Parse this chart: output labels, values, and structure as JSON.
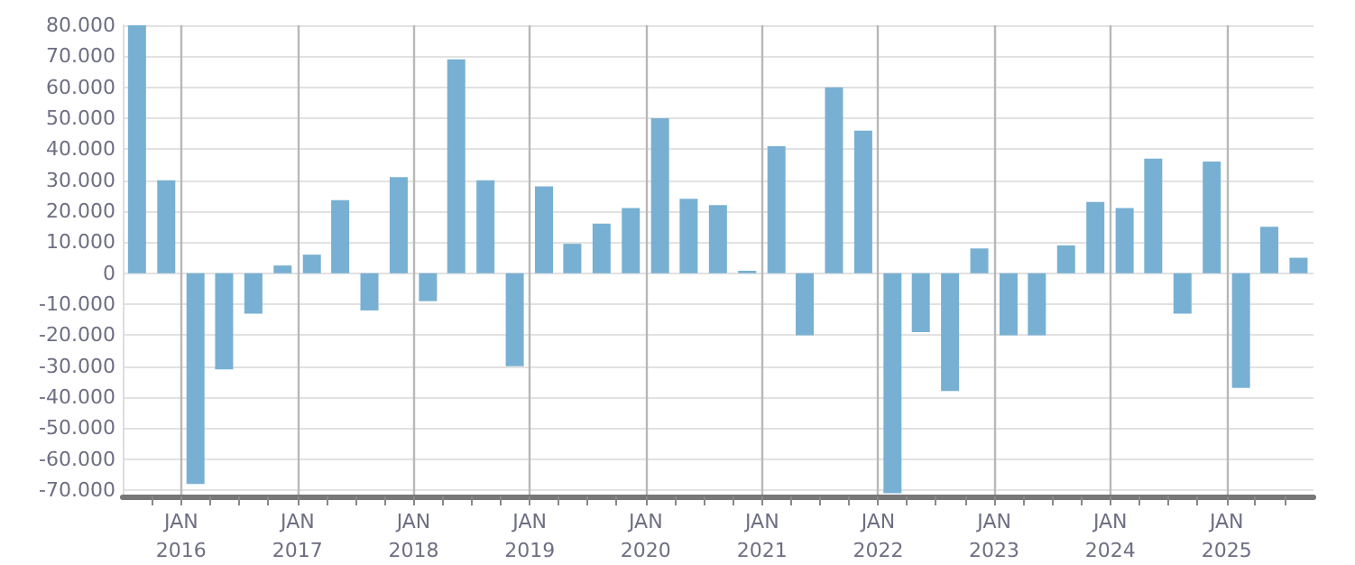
{
  "chart_data": {
    "type": "bar",
    "color": "#78b0d3",
    "x": [
      "2015-08-15",
      "2015-11-15",
      "2016-02-15",
      "2016-05-15",
      "2016-08-15",
      "2016-11-15",
      "2017-02-15",
      "2017-05-15",
      "2017-08-15",
      "2017-11-15",
      "2018-02-15",
      "2018-05-15",
      "2018-08-15",
      "2018-11-15",
      "2019-02-15",
      "2019-05-15",
      "2019-08-15",
      "2019-11-15",
      "2020-02-15",
      "2020-05-15",
      "2020-08-15",
      "2020-11-15",
      "2021-02-15",
      "2021-05-15",
      "2021-08-15",
      "2021-11-15",
      "2022-02-15",
      "2022-05-15",
      "2022-08-15",
      "2022-11-15",
      "2023-02-15",
      "2023-05-15",
      "2023-08-15",
      "2023-11-15",
      "2024-02-15",
      "2024-05-15",
      "2024-08-15",
      "2024-11-15",
      "2025-02-15",
      "2025-05-15",
      "2025-08-15"
    ],
    "values": [
      80000,
      30000,
      -68000,
      -31000,
      -13000,
      2500,
      6000,
      23600,
      -12000,
      31000,
      -9000,
      69000,
      30000,
      -30000,
      28000,
      9500,
      16000,
      21000,
      50000,
      24000,
      22000,
      800,
      41000,
      -20000,
      60000,
      46000,
      -71000,
      -19000,
      -38000,
      8000,
      -20000,
      -20000,
      9000,
      23000,
      21000,
      37000,
      -13000,
      36000,
      -37000,
      15000,
      5000
    ],
    "xlim": [
      "2015-07-01",
      "2025-10-01"
    ],
    "xticks": [
      {
        "value": "2015-10-01",
        "label": null
      },
      {
        "value": "2016-01-01",
        "label": "JAN\n2016"
      },
      {
        "value": "2016-04-01",
        "label": null
      },
      {
        "value": "2016-07-01",
        "label": null
      },
      {
        "value": "2016-10-01",
        "label": null
      },
      {
        "value": "2017-01-01",
        "label": "JAN\n2017"
      },
      {
        "value": "2017-04-01",
        "label": null
      },
      {
        "value": "2017-07-01",
        "label": null
      },
      {
        "value": "2017-10-01",
        "label": null
      },
      {
        "value": "2018-01-01",
        "label": "JAN\n2018"
      },
      {
        "value": "2018-04-01",
        "label": null
      },
      {
        "value": "2018-07-01",
        "label": null
      },
      {
        "value": "2018-10-01",
        "label": null
      },
      {
        "value": "2019-01-01",
        "label": "JAN\n2019"
      },
      {
        "value": "2019-04-01",
        "label": null
      },
      {
        "value": "2019-07-01",
        "label": null
      },
      {
        "value": "2019-10-01",
        "label": null
      },
      {
        "value": "2020-01-01",
        "label": "JAN\n2020"
      },
      {
        "value": "2020-04-01",
        "label": null
      },
      {
        "value": "2020-07-01",
        "label": null
      },
      {
        "value": "2020-10-01",
        "label": null
      },
      {
        "value": "2021-01-01",
        "label": "JAN\n2021"
      },
      {
        "value": "2021-04-01",
        "label": null
      },
      {
        "value": "2021-07-01",
        "label": null
      },
      {
        "value": "2021-10-01",
        "label": null
      },
      {
        "value": "2022-01-01",
        "label": "JAN\n2022"
      },
      {
        "value": "2022-04-01",
        "label": null
      },
      {
        "value": "2022-07-01",
        "label": null
      },
      {
        "value": "2022-10-01",
        "label": null
      },
      {
        "value": "2023-01-01",
        "label": "JAN\n2023"
      },
      {
        "value": "2023-04-01",
        "label": null
      },
      {
        "value": "2023-07-01",
        "label": null
      },
      {
        "value": "2023-10-01",
        "label": null
      },
      {
        "value": "2024-01-01",
        "label": "JAN\n2024"
      },
      {
        "value": "2024-04-01",
        "label": null
      },
      {
        "value": "2024-07-01",
        "label": null
      },
      {
        "value": "2024-10-01",
        "label": null
      },
      {
        "value": "2025-01-01",
        "label": "JAN\n2025"
      },
      {
        "value": "2025-04-01",
        "label": null
      },
      {
        "value": "2025-07-01",
        "label": null
      }
    ],
    "ylim": [
      -72000,
      80000
    ],
    "yticks": [
      {
        "value": -70000,
        "label": "-70.000"
      },
      {
        "value": -60000,
        "label": "-60.000"
      },
      {
        "value": -50000,
        "label": "-50.000"
      },
      {
        "value": -40000,
        "label": "-40.000"
      },
      {
        "value": -30000,
        "label": "-30.000"
      },
      {
        "value": -20000,
        "label": "-20.000"
      },
      {
        "value": -10000,
        "label": "-10.000"
      },
      {
        "value": 0,
        "label": "0"
      },
      {
        "value": 10000,
        "label": "10.000"
      },
      {
        "value": 20000,
        "label": "20.000"
      },
      {
        "value": 30000,
        "label": "30.000"
      },
      {
        "value": 40000,
        "label": "40.000"
      },
      {
        "value": 50000,
        "label": "50.000"
      },
      {
        "value": 60000,
        "label": "60.000"
      },
      {
        "value": 70000,
        "label": "70.000"
      },
      {
        "value": 80000,
        "label": "80.000"
      }
    ],
    "grid": true
  }
}
